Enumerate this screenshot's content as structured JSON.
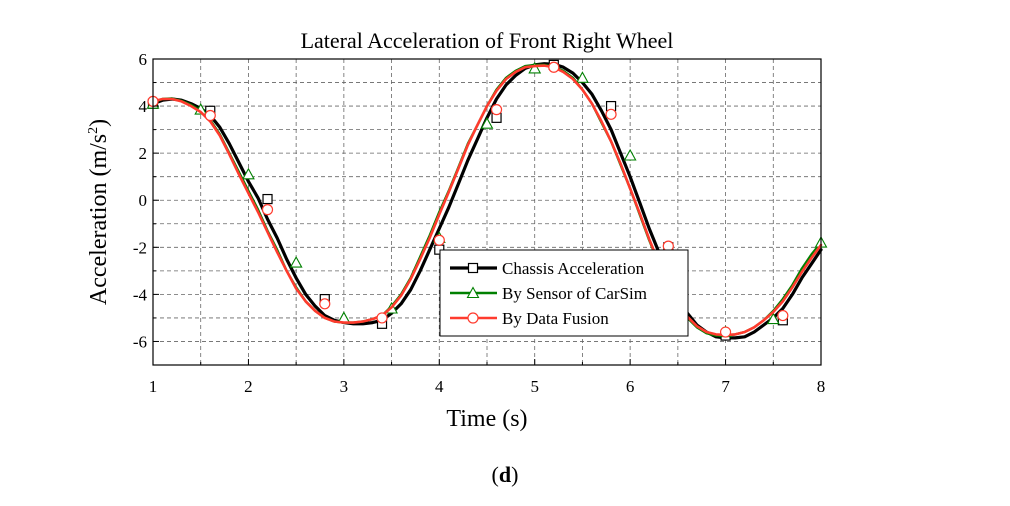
{
  "chart_data": {
    "type": "line",
    "title": "Lateral Acceleration of Front Right Wheel",
    "xlabel": "Time (s)",
    "ylabel_main": "Acceleration (m/s",
    "ylabel_sup": "2",
    "ylabel_close": ")",
    "xlim": [
      1,
      8
    ],
    "ylim": [
      -7,
      6
    ],
    "xticks": [
      1,
      2,
      3,
      4,
      5,
      6,
      7,
      8
    ],
    "yticks": [
      -6,
      -4,
      -2,
      0,
      2,
      4,
      6
    ],
    "grid": true,
    "legend_position": "lower-center",
    "series": [
      {
        "name": "Chassis Acceleration",
        "color": "#000000",
        "marker": "square",
        "x": [
          1.0,
          1.1,
          1.2,
          1.3,
          1.4,
          1.5,
          1.6,
          1.7,
          1.8,
          1.9,
          2.0,
          2.1,
          2.2,
          2.3,
          2.4,
          2.5,
          2.6,
          2.7,
          2.8,
          2.9,
          3.0,
          3.1,
          3.2,
          3.3,
          3.4,
          3.5,
          3.6,
          3.7,
          3.8,
          3.9,
          4.0,
          4.1,
          4.2,
          4.3,
          4.4,
          4.5,
          4.6,
          4.7,
          4.8,
          4.9,
          5.0,
          5.1,
          5.2,
          5.3,
          5.4,
          5.5,
          5.6,
          5.7,
          5.8,
          5.9,
          6.0,
          6.1,
          6.2,
          6.3,
          6.4,
          6.5,
          6.6,
          6.7,
          6.8,
          6.9,
          7.0,
          7.1,
          7.2,
          7.3,
          7.4,
          7.5,
          7.6,
          7.7,
          7.8,
          7.9,
          8.0
        ],
        "y": [
          4.1,
          4.25,
          4.3,
          4.25,
          4.1,
          3.9,
          3.6,
          3.1,
          2.4,
          1.6,
          0.8,
          0.1,
          -0.8,
          -1.6,
          -2.5,
          -3.3,
          -4.0,
          -4.5,
          -4.9,
          -5.1,
          -5.2,
          -5.25,
          -5.25,
          -5.2,
          -5.1,
          -4.8,
          -4.4,
          -3.8,
          -3.0,
          -2.1,
          -1.2,
          -0.3,
          0.7,
          1.7,
          2.6,
          3.5,
          4.3,
          4.9,
          5.3,
          5.6,
          5.75,
          5.8,
          5.78,
          5.65,
          5.4,
          5.0,
          4.5,
          3.8,
          3.0,
          2.0,
          1.0,
          -0.1,
          -1.2,
          -2.2,
          -3.2,
          -4.1,
          -4.8,
          -5.3,
          -5.6,
          -5.8,
          -5.85,
          -5.85,
          -5.8,
          -5.6,
          -5.3,
          -5.0,
          -4.6,
          -4.0,
          -3.3,
          -2.7,
          -2.1
        ],
        "marker_x": [
          1.0,
          1.6,
          2.2,
          2.8,
          3.4,
          4.0,
          4.6,
          5.2,
          5.8,
          6.4,
          7.0,
          7.6
        ],
        "marker_y": [
          4.1,
          3.8,
          0.05,
          -4.2,
          -5.25,
          -2.1,
          3.5,
          5.75,
          4.0,
          -2.0,
          -5.75,
          -5.1
        ]
      },
      {
        "name": "By Sensor of CarSim",
        "color": "#008000",
        "marker": "triangle",
        "x": [
          1.0,
          1.1,
          1.2,
          1.3,
          1.4,
          1.5,
          1.6,
          1.7,
          1.8,
          1.9,
          2.0,
          2.1,
          2.2,
          2.3,
          2.4,
          2.5,
          2.6,
          2.7,
          2.8,
          2.9,
          3.0,
          3.1,
          3.2,
          3.3,
          3.4,
          3.5,
          3.6,
          3.7,
          3.8,
          3.9,
          4.0,
          4.1,
          4.2,
          4.3,
          4.4,
          4.5,
          4.6,
          4.7,
          4.8,
          4.9,
          5.0,
          5.1,
          5.2,
          5.3,
          5.4,
          5.5,
          5.6,
          5.7,
          5.8,
          5.9,
          6.0,
          6.1,
          6.2,
          6.3,
          6.4,
          6.5,
          6.6,
          6.7,
          6.8,
          6.9,
          7.0,
          7.1,
          7.2,
          7.3,
          7.4,
          7.5,
          7.6,
          7.7,
          7.8,
          7.9,
          8.0
        ],
        "y": [
          4.15,
          4.3,
          4.32,
          4.22,
          4.05,
          3.8,
          3.4,
          2.8,
          2.0,
          1.2,
          0.4,
          -0.4,
          -1.3,
          -2.1,
          -3.0,
          -3.7,
          -4.3,
          -4.7,
          -5.0,
          -5.15,
          -5.2,
          -5.2,
          -5.15,
          -5.05,
          -4.9,
          -4.5,
          -4.0,
          -3.3,
          -2.4,
          -1.5,
          -0.5,
          0.4,
          1.4,
          2.4,
          3.2,
          4.0,
          4.7,
          5.2,
          5.5,
          5.7,
          5.75,
          5.75,
          5.68,
          5.5,
          5.2,
          4.7,
          4.1,
          3.3,
          2.5,
          1.5,
          0.5,
          -0.6,
          -1.7,
          -2.7,
          -3.6,
          -4.4,
          -5.0,
          -5.4,
          -5.65,
          -5.75,
          -5.75,
          -5.7,
          -5.6,
          -5.4,
          -5.1,
          -4.7,
          -4.2,
          -3.6,
          -2.9,
          -2.3,
          -1.8
        ],
        "marker_x": [
          1.0,
          1.5,
          2.0,
          2.5,
          3.0,
          3.5,
          4.0,
          4.5,
          5.0,
          5.5,
          6.0,
          6.5,
          7.0,
          7.5,
          8.0
        ],
        "marker_y": [
          4.1,
          3.85,
          1.1,
          -2.65,
          -5.0,
          -4.6,
          -1.6,
          3.25,
          5.6,
          5.2,
          1.9,
          -3.2,
          -5.6,
          -5.05,
          -1.8
        ]
      },
      {
        "name": "By Data Fusion",
        "color": "#ff3b2e",
        "marker": "circle",
        "x": [
          1.0,
          1.1,
          1.2,
          1.3,
          1.4,
          1.5,
          1.6,
          1.7,
          1.8,
          1.9,
          2.0,
          2.1,
          2.2,
          2.3,
          2.4,
          2.5,
          2.6,
          2.7,
          2.8,
          2.9,
          3.0,
          3.1,
          3.2,
          3.3,
          3.4,
          3.5,
          3.6,
          3.7,
          3.8,
          3.9,
          4.0,
          4.1,
          4.2,
          4.3,
          4.4,
          4.5,
          4.6,
          4.7,
          4.8,
          4.9,
          5.0,
          5.1,
          5.2,
          5.3,
          5.4,
          5.5,
          5.6,
          5.7,
          5.8,
          5.9,
          6.0,
          6.1,
          6.2,
          6.3,
          6.4,
          6.5,
          6.6,
          6.7,
          6.8,
          6.9,
          7.0,
          7.1,
          7.2,
          7.3,
          7.4,
          7.5,
          7.6,
          7.7,
          7.8,
          7.9,
          8.0
        ],
        "y": [
          4.2,
          4.3,
          4.3,
          4.2,
          4.0,
          3.75,
          3.35,
          2.75,
          1.95,
          1.1,
          0.3,
          -0.5,
          -1.35,
          -2.2,
          -3.0,
          -3.75,
          -4.3,
          -4.7,
          -5.0,
          -5.15,
          -5.2,
          -5.2,
          -5.15,
          -5.05,
          -4.9,
          -4.55,
          -4.05,
          -3.35,
          -2.5,
          -1.6,
          -0.6,
          0.35,
          1.35,
          2.35,
          3.2,
          4.0,
          4.65,
          5.15,
          5.45,
          5.65,
          5.7,
          5.72,
          5.65,
          5.45,
          5.15,
          4.7,
          4.1,
          3.35,
          2.5,
          1.55,
          0.5,
          -0.55,
          -1.65,
          -2.65,
          -3.55,
          -4.35,
          -4.95,
          -5.35,
          -5.6,
          -5.7,
          -5.72,
          -5.7,
          -5.6,
          -5.4,
          -5.1,
          -4.75,
          -4.3,
          -3.7,
          -3.05,
          -2.45,
          -1.9
        ],
        "marker_x": [
          1.0,
          1.6,
          2.2,
          2.8,
          3.4,
          4.0,
          4.6,
          5.2,
          5.8,
          6.4,
          7.0,
          7.6
        ],
        "marker_y": [
          4.2,
          3.6,
          -0.4,
          -4.4,
          -5.0,
          -1.7,
          3.85,
          5.65,
          3.65,
          -1.95,
          -5.6,
          -4.9
        ]
      }
    ]
  },
  "panel_label": {
    "open": "(",
    "letter": "d",
    "close": ")"
  }
}
